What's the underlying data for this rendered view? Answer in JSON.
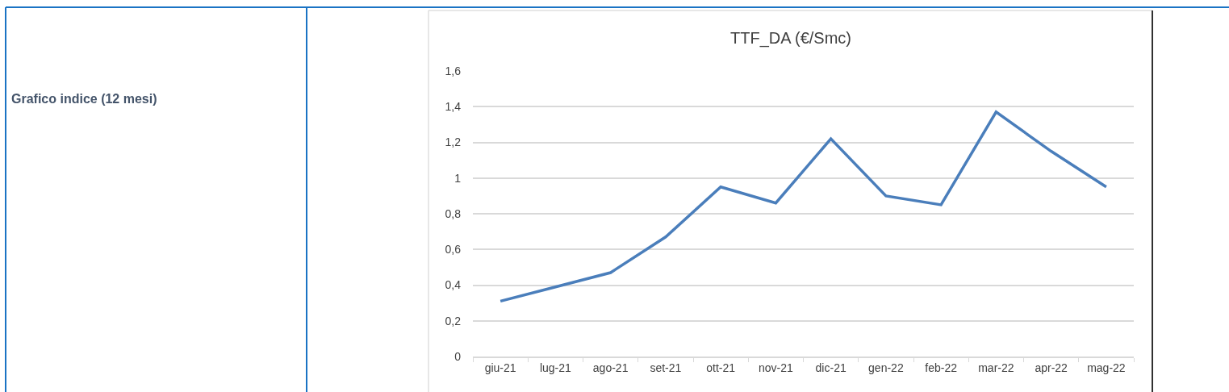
{
  "chart_data": {
    "type": "line",
    "title": "TTF_DA (€/Smc)",
    "categories": [
      "giu-21",
      "lug-21",
      "ago-21",
      "set-21",
      "ott-21",
      "nov-21",
      "dic-21",
      "gen-22",
      "feb-22",
      "mar-22",
      "apr-22",
      "mag-22"
    ],
    "series": [
      {
        "color": "#4a7ebb",
        "values": [
          0.31,
          0.39,
          0.47,
          0.67,
          0.95,
          0.86,
          1.22,
          0.9,
          0.85,
          1.37,
          1.15,
          0.95
        ]
      }
    ],
    "ylim": [
      0,
      1.6
    ],
    "yticks": [
      0,
      {
        "value": 0.2,
        "label": "0,2"
      },
      {
        "value": 0.4,
        "label": "0,4"
      },
      {
        "value": 0.6,
        "label": "0,6"
      },
      {
        "value": 0.8,
        "label": "0,8"
      },
      1,
      {
        "value": 1.2,
        "label": "1,2"
      },
      {
        "value": 1.4,
        "label": "1,4"
      },
      {
        "value": 1.6,
        "label": "1,6"
      }
    ],
    "grid": "y",
    "marker": "none",
    "line_style": "solid",
    "annotations": [
      "Grafico indice (12 mesi)"
    ]
  }
}
